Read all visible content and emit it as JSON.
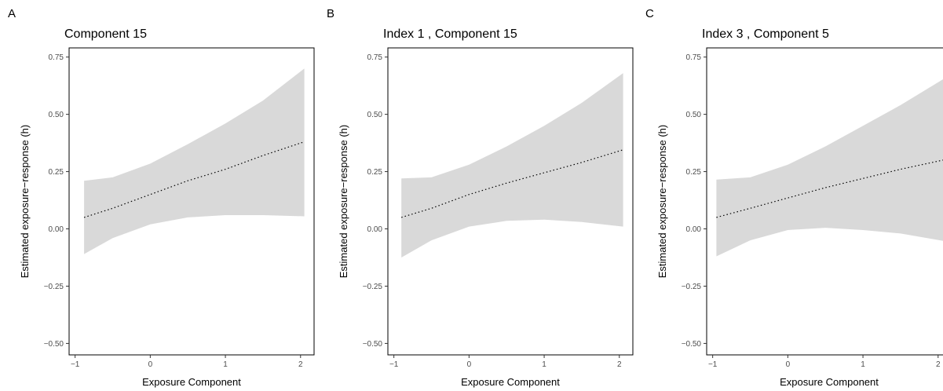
{
  "chart_data": [
    {
      "type": "line",
      "panel": "A",
      "title": "Component 15",
      "xlabel": "Exposure Component",
      "ylabel": "Estimated exposure−response (h)",
      "xlim": [
        -1.08,
        2.18
      ],
      "ylim": [
        -0.55,
        0.79
      ],
      "xticks": [
        -1,
        0,
        1,
        2
      ],
      "yticks": [
        -0.5,
        -0.25,
        0,
        0.25,
        0.5,
        0.75
      ],
      "xtick_labels": [
        "−1",
        "0",
        "1",
        "2"
      ],
      "ytick_labels": [
        "−0.50",
        "−0.25",
        "0.00",
        "0.25",
        "0.50",
        "0.75"
      ],
      "grid": false,
      "x": [
        -0.88,
        -0.5,
        0.0,
        0.5,
        1.0,
        1.5,
        2.05
      ],
      "y": [
        0.05,
        0.09,
        0.15,
        0.21,
        0.26,
        0.32,
        0.38
      ],
      "lower": [
        -0.11,
        -0.04,
        0.02,
        0.05,
        0.06,
        0.06,
        0.055
      ],
      "upper": [
        0.21,
        0.225,
        0.285,
        0.37,
        0.46,
        0.56,
        0.7
      ]
    },
    {
      "type": "line",
      "panel": "B",
      "title": "Index 1 , Component 15",
      "xlabel": "Exposure Component",
      "ylabel": "Estimated exposure−response (h)",
      "xlim": [
        -1.08,
        2.18
      ],
      "ylim": [
        -0.55,
        0.79
      ],
      "xticks": [
        -1,
        0,
        1,
        2
      ],
      "yticks": [
        -0.5,
        -0.25,
        0,
        0.25,
        0.5,
        0.75
      ],
      "xtick_labels": [
        "−1",
        "0",
        "1",
        "2"
      ],
      "ytick_labels": [
        "−0.50",
        "−0.25",
        "0.00",
        "0.25",
        "0.50",
        "0.75"
      ],
      "grid": false,
      "x": [
        -0.9,
        -0.5,
        0.0,
        0.5,
        1.0,
        1.5,
        2.05
      ],
      "y": [
        0.05,
        0.09,
        0.15,
        0.2,
        0.245,
        0.29,
        0.345
      ],
      "lower": [
        -0.125,
        -0.05,
        0.01,
        0.035,
        0.04,
        0.03,
        0.01
      ],
      "upper": [
        0.22,
        0.225,
        0.28,
        0.36,
        0.45,
        0.55,
        0.68
      ]
    },
    {
      "type": "line",
      "panel": "C",
      "title": "Index 3 , Component 5",
      "xlabel": "Exposure Component",
      "ylabel": "Estimated exposure−response (h)",
      "xlim": [
        -1.08,
        2.18
      ],
      "ylim": [
        -0.55,
        0.79
      ],
      "xticks": [
        -1,
        0,
        1,
        2
      ],
      "yticks": [
        -0.5,
        -0.25,
        0,
        0.25,
        0.5,
        0.75
      ],
      "xtick_labels": [
        "−1",
        "0",
        "1",
        "2"
      ],
      "ytick_labels": [
        "−0.50",
        "−0.25",
        "0.00",
        "0.25",
        "0.50",
        "0.75"
      ],
      "grid": false,
      "x": [
        -0.95,
        -0.5,
        0.0,
        0.5,
        1.0,
        1.5,
        2.2
      ],
      "y": [
        0.05,
        0.09,
        0.135,
        0.18,
        0.22,
        0.26,
        0.31
      ],
      "lower": [
        -0.12,
        -0.05,
        -0.005,
        0.005,
        -0.005,
        -0.02,
        -0.06
      ],
      "upper": [
        0.215,
        0.225,
        0.28,
        0.36,
        0.45,
        0.54,
        0.68
      ]
    }
  ]
}
